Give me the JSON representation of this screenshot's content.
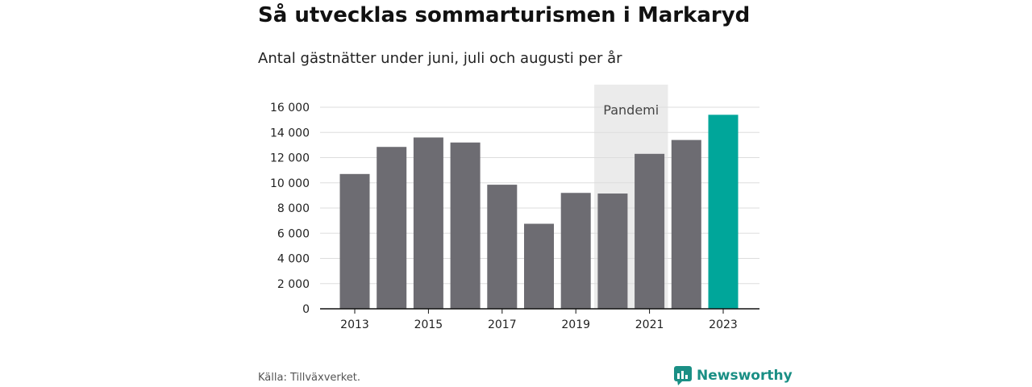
{
  "title": "Så utvecklas sommarturismen i Markaryd",
  "subtitle": "Antal gästnätter under juni, juli och augusti per år",
  "source": "Källa: Tillväxverket.",
  "brand": {
    "name": "Newsworthy",
    "icon": "newsworthy-logo-icon"
  },
  "colors": {
    "bar": "#6d6c72",
    "highlight": "#00a69a",
    "band": "#ebebeb",
    "grid": "#dddddd",
    "axis": "#111111",
    "brand": "#1a8f85"
  },
  "chart_data": {
    "type": "bar",
    "categories": [
      "2013",
      "2014",
      "2015",
      "2016",
      "2017",
      "2018",
      "2019",
      "2020",
      "2021",
      "2022",
      "2023"
    ],
    "x_tick_labels": [
      "2013",
      "2015",
      "2017",
      "2019",
      "2021",
      "2023"
    ],
    "values": [
      10700,
      12850,
      13600,
      13200,
      9850,
      6750,
      9200,
      9150,
      12300,
      13400,
      15400
    ],
    "highlight": [
      "2023"
    ],
    "ylim": [
      0,
      16000
    ],
    "y_ticks": [
      0,
      2000,
      4000,
      6000,
      8000,
      10000,
      12000,
      14000,
      16000
    ],
    "y_tick_labels": [
      "0",
      "2 000",
      "4 000",
      "6 000",
      "8 000",
      "10 000",
      "12 000",
      "14 000",
      "16 000"
    ],
    "annotations": [
      {
        "label": "Pandemi",
        "from": "2020",
        "to": "2021"
      }
    ],
    "grid": true,
    "legend": "none"
  }
}
